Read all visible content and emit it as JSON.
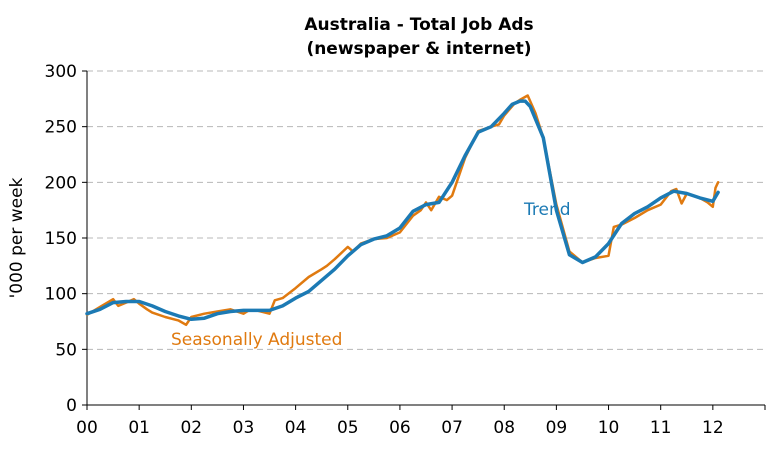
{
  "chart_data": {
    "type": "line",
    "title": "Australia - Total Job Ads",
    "subtitle": "(newspaper & internet)",
    "xlabel": "",
    "ylabel": "'000 per week",
    "xlim": [
      2000,
      2013
    ],
    "ylim": [
      0,
      300
    ],
    "yticks": [
      "0",
      "50",
      "100",
      "150",
      "200",
      "250",
      "300"
    ],
    "xticks": [
      "00",
      "01",
      "02",
      "03",
      "04",
      "05",
      "06",
      "07",
      "08",
      "09",
      "10",
      "11",
      "12"
    ],
    "grid": "horizontal dashed",
    "colors": {
      "seasonal": "#e07a10",
      "trend": "#1c7ab4"
    },
    "annotations": [
      {
        "text": "Seasonally Adjusted",
        "series": "seasonal"
      },
      {
        "text": "Trend",
        "series": "trend"
      }
    ],
    "series": [
      {
        "name": "Seasonally Adjusted",
        "color": "#e07a10",
        "x": [
          2000.0,
          2000.25,
          2000.5,
          2000.6,
          2000.75,
          2000.9,
          2001.0,
          2001.15,
          2001.25,
          2001.5,
          2001.75,
          2001.9,
          2002.0,
          2002.25,
          2002.5,
          2002.75,
          2003.0,
          2003.1,
          2003.25,
          2003.5,
          2003.6,
          2003.75,
          2004.0,
          2004.25,
          2004.5,
          2004.6,
          2004.75,
          2005.0,
          2005.1,
          2005.25,
          2005.5,
          2005.75,
          2006.0,
          2006.25,
          2006.4,
          2006.5,
          2006.6,
          2006.75,
          2006.9,
          2007.0,
          2007.25,
          2007.5,
          2007.75,
          2007.9,
          2008.0,
          2008.2,
          2008.3,
          2008.45,
          2008.6,
          2008.75,
          2009.0,
          2009.25,
          2009.5,
          2009.75,
          2010.0,
          2010.1,
          2010.25,
          2010.5,
          2010.75,
          2011.0,
          2011.2,
          2011.3,
          2011.4,
          2011.5,
          2011.75,
          2011.9,
          2012.0,
          2012.05,
          2012.1
        ],
        "y": [
          81,
          88,
          95,
          89,
          92,
          95,
          91,
          86,
          83,
          79,
          76,
          72,
          79,
          82,
          84,
          86,
          82,
          85,
          85,
          82,
          94,
          96,
          105,
          115,
          122,
          125,
          131,
          142,
          138,
          145,
          149,
          150,
          155,
          170,
          175,
          182,
          175,
          187,
          184,
          188,
          222,
          246,
          250,
          252,
          260,
          271,
          274,
          278,
          262,
          240,
          180,
          138,
          128,
          132,
          134,
          160,
          162,
          168,
          175,
          180,
          192,
          194,
          181,
          190,
          186,
          182,
          178,
          195,
          200
        ]
      },
      {
        "name": "Trend",
        "color": "#1c7ab4",
        "x": [
          2000.0,
          2000.25,
          2000.5,
          2000.75,
          2001.0,
          2001.25,
          2001.5,
          2001.75,
          2002.0,
          2002.25,
          2002.5,
          2002.75,
          2003.0,
          2003.25,
          2003.5,
          2003.75,
          2004.0,
          2004.25,
          2004.5,
          2004.75,
          2005.0,
          2005.25,
          2005.5,
          2005.75,
          2006.0,
          2006.25,
          2006.5,
          2006.75,
          2007.0,
          2007.25,
          2007.5,
          2007.75,
          2008.0,
          2008.15,
          2008.3,
          2008.4,
          2008.5,
          2008.75,
          2009.0,
          2009.25,
          2009.5,
          2009.75,
          2010.0,
          2010.25,
          2010.5,
          2010.75,
          2011.0,
          2011.25,
          2011.5,
          2011.75,
          2012.0,
          2012.1
        ],
        "y": [
          82,
          86,
          92,
          93,
          93,
          89,
          84,
          80,
          77,
          78,
          82,
          84,
          85,
          85,
          85,
          89,
          96,
          102,
          112,
          122,
          134,
          144,
          149,
          152,
          159,
          174,
          180,
          182,
          200,
          224,
          245,
          250,
          262,
          270,
          273,
          273,
          268,
          240,
          175,
          135,
          128,
          133,
          145,
          163,
          172,
          178,
          186,
          192,
          190,
          186,
          183,
          191
        ]
      }
    ]
  }
}
